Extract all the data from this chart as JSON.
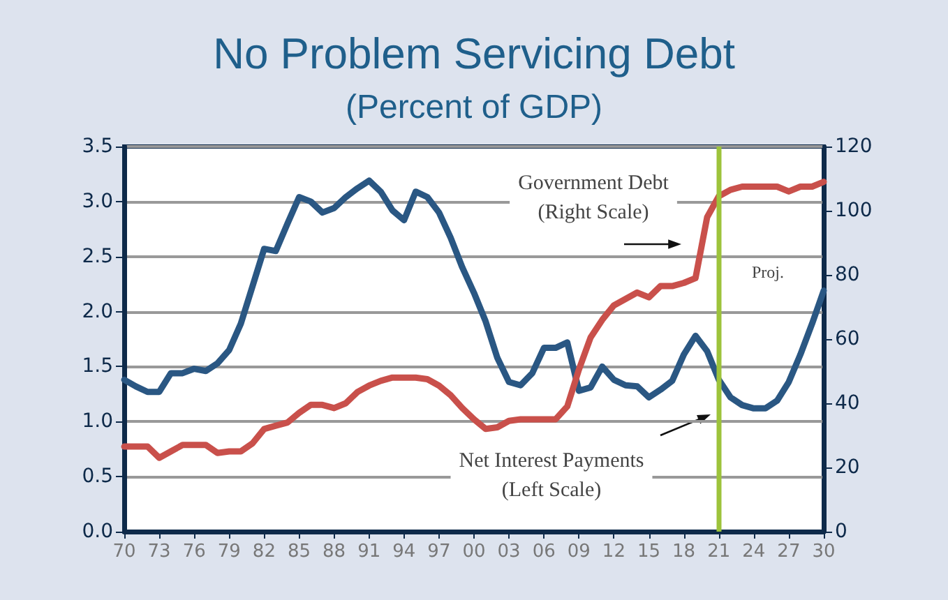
{
  "chart_data": {
    "type": "line",
    "title": "No Problem Servicing Debt",
    "subtitle": "(Percent of GDP)",
    "x": [
      1970,
      1971,
      1972,
      1973,
      1974,
      1975,
      1976,
      1977,
      1978,
      1979,
      1980,
      1981,
      1982,
      1983,
      1984,
      1985,
      1986,
      1987,
      1988,
      1989,
      1990,
      1991,
      1992,
      1993,
      1994,
      1995,
      1996,
      1997,
      1998,
      1999,
      2000,
      2001,
      2002,
      2003,
      2004,
      2005,
      2006,
      2007,
      2008,
      2009,
      2010,
      2011,
      2012,
      2013,
      2014,
      2015,
      2016,
      2017,
      2018,
      2019,
      2020,
      2021,
      2022,
      2023,
      2024,
      2025,
      2026,
      2027,
      2028,
      2029,
      2030
    ],
    "series": [
      {
        "color": "#2a5783",
        "axis": "y",
        "values": [
          1.38,
          1.32,
          1.27,
          1.27,
          1.44,
          1.44,
          1.48,
          1.46,
          1.53,
          1.65,
          1.89,
          2.23,
          2.57,
          2.55,
          2.8,
          3.04,
          3.0,
          2.9,
          2.94,
          3.04,
          3.12,
          3.19,
          3.09,
          2.92,
          2.83,
          3.09,
          3.04,
          2.9,
          2.67,
          2.4,
          2.17,
          1.91,
          1.58,
          1.36,
          1.33,
          1.44,
          1.67,
          1.67,
          1.72,
          1.28,
          1.31,
          1.5,
          1.38,
          1.33,
          1.32,
          1.22,
          1.29,
          1.37,
          1.61,
          1.78,
          1.64,
          1.38,
          1.22,
          1.15,
          1.12,
          1.12,
          1.19,
          1.36,
          1.61,
          1.89,
          2.19
        ]
      },
      {
        "color": "#c9504b",
        "axis": "y2",
        "values": [
          26.5,
          26.5,
          26.5,
          23,
          25,
          27,
          27,
          27,
          24.5,
          25,
          25,
          27.5,
          32,
          33,
          34,
          37,
          39.5,
          39.5,
          38.5,
          40,
          43.5,
          45.5,
          47,
          48,
          48,
          48,
          47.5,
          45.5,
          42.5,
          38.5,
          35,
          32,
          32.5,
          34.5,
          35,
          35,
          35,
          35,
          39,
          50.5,
          60.5,
          66,
          70.5,
          72.5,
          74.5,
          73,
          76.5,
          76.5,
          77.5,
          79,
          98,
          104.5,
          106.5,
          107.5,
          107.5,
          107.5,
          107.5,
          106,
          107.5,
          107.5,
          109
        ]
      }
    ],
    "xlim": [
      1970,
      2030
    ],
    "xticks": [
      {
        "value": 1970,
        "label": "70"
      },
      {
        "value": 1973,
        "label": "73"
      },
      {
        "value": 1976,
        "label": "76"
      },
      {
        "value": 1979,
        "label": "79"
      },
      {
        "value": 1982,
        "label": "82"
      },
      {
        "value": 1985,
        "label": "85"
      },
      {
        "value": 1988,
        "label": "88"
      },
      {
        "value": 1991,
        "label": "91"
      },
      {
        "value": 1994,
        "label": "94"
      },
      {
        "value": 1997,
        "label": "97"
      },
      {
        "value": 2000,
        "label": "00"
      },
      {
        "value": 2003,
        "label": "03"
      },
      {
        "value": 2006,
        "label": "06"
      },
      {
        "value": 2009,
        "label": "09"
      },
      {
        "value": 2012,
        "label": "12"
      },
      {
        "value": 2015,
        "label": "15"
      },
      {
        "value": 2018,
        "label": "18"
      },
      {
        "value": 2021,
        "label": "21"
      },
      {
        "value": 2024,
        "label": "24"
      },
      {
        "value": 2027,
        "label": "27"
      },
      {
        "value": 2030,
        "label": "30"
      }
    ],
    "ylim": [
      0,
      3.5
    ],
    "yticks": [
      {
        "value": 0,
        "label": "0.0"
      },
      {
        "value": 0.5,
        "label": "0.5"
      },
      {
        "value": 1,
        "label": "1.0"
      },
      {
        "value": 1.5,
        "label": "1.5"
      },
      {
        "value": 2,
        "label": "2.0"
      },
      {
        "value": 2.5,
        "label": "2.5"
      },
      {
        "value": 3,
        "label": "3.0"
      },
      {
        "value": 3.5,
        "label": "3.5"
      }
    ],
    "y2lim": [
      0,
      120
    ],
    "y2ticks": [
      0,
      20,
      40,
      60,
      80,
      100,
      120
    ],
    "ref_lines": [
      {
        "axis": "x",
        "value": 2021,
        "color": "#9dc33b"
      }
    ],
    "annotations": [
      "Government Debt\n(Right Scale)",
      "Net Interest Payments\n(Left Scale)",
      "Proj."
    ],
    "grid": "y",
    "marker": "none",
    "line_style": "solid"
  }
}
